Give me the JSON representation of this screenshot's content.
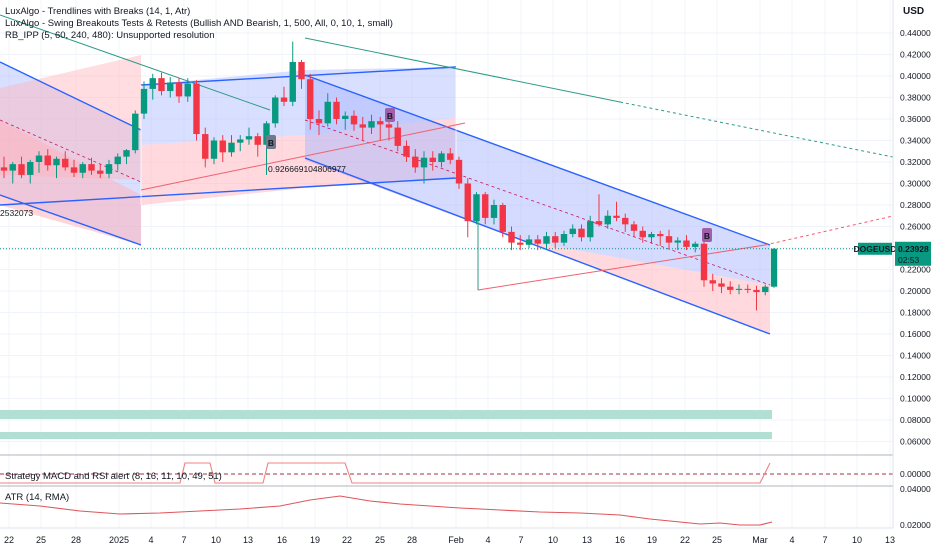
{
  "header": {
    "currency": "USD",
    "indicators": [
      "LuxAlgo - Trendlines with Breaks (14, 1, Atr)",
      "LuxAlgo - Swing Breakouts Tests & Retests (Bullish AND Bearish, 1, 500, All, 0, 10, 1, small)",
      "RB_IPP (5, 60, 240, 480): Unsupported resolution"
    ]
  },
  "price_tag": {
    "symbol": "DOGEUSD",
    "price": "0.23928",
    "countdown": "02:53"
  },
  "annotations": {
    "fib_value": "0.926669104806977",
    "left_value": "2532073",
    "break_label": "B"
  },
  "panes": {
    "strategy_label": "Strategy MACD and RSI alert (8, 16, 11, 10, 49, 51)",
    "atr_label": "ATR (14, RMA)"
  },
  "colors": {
    "up": "#089981",
    "down": "#f23645",
    "channel_blue": "#2962ff",
    "channel_fill_blue": "#aab8ff",
    "channel_fill_red": "#ffb3bb",
    "trend_teal": "#2e9c88",
    "badge": "#a05fa8",
    "zone": "#b2dfd4",
    "atr": "#e0555a"
  },
  "chart_data": {
    "type": "candlestick",
    "symbol": "DOGEUSD",
    "ylim": [
      0.0,
      0.45
    ],
    "y_ticks": [
      "0.44000",
      "0.42000",
      "0.40000",
      "0.38000",
      "0.36000",
      "0.34000",
      "0.32000",
      "0.30000",
      "0.28000",
      "0.26000",
      "0.24000",
      "0.22000",
      "0.20000",
      "0.18000",
      "0.16000",
      "0.14000",
      "0.12000",
      "0.10000",
      "0.08000",
      "0.06000"
    ],
    "x_ticks": [
      "22",
      "25",
      "28",
      "2025",
      "4",
      "7",
      "10",
      "13",
      "16",
      "19",
      "22",
      "25",
      "28",
      "Feb",
      "4",
      "7",
      "10",
      "13",
      "16",
      "19",
      "22",
      "25",
      "Mar",
      "4",
      "7",
      "10",
      "13"
    ],
    "candles": [
      {
        "o": 0.315,
        "h": 0.325,
        "l": 0.305,
        "c": 0.312
      },
      {
        "o": 0.312,
        "h": 0.32,
        "l": 0.3,
        "c": 0.318
      },
      {
        "o": 0.318,
        "h": 0.325,
        "l": 0.305,
        "c": 0.308
      },
      {
        "o": 0.308,
        "h": 0.322,
        "l": 0.3,
        "c": 0.32
      },
      {
        "o": 0.32,
        "h": 0.33,
        "l": 0.31,
        "c": 0.326
      },
      {
        "o": 0.326,
        "h": 0.332,
        "l": 0.312,
        "c": 0.317
      },
      {
        "o": 0.317,
        "h": 0.325,
        "l": 0.305,
        "c": 0.323
      },
      {
        "o": 0.323,
        "h": 0.33,
        "l": 0.312,
        "c": 0.315
      },
      {
        "o": 0.315,
        "h": 0.322,
        "l": 0.306,
        "c": 0.31
      },
      {
        "o": 0.31,
        "h": 0.32,
        "l": 0.305,
        "c": 0.318
      },
      {
        "o": 0.318,
        "h": 0.324,
        "l": 0.308,
        "c": 0.312
      },
      {
        "o": 0.312,
        "h": 0.318,
        "l": 0.305,
        "c": 0.309
      },
      {
        "o": 0.309,
        "h": 0.322,
        "l": 0.305,
        "c": 0.318
      },
      {
        "o": 0.318,
        "h": 0.328,
        "l": 0.312,
        "c": 0.325
      },
      {
        "o": 0.325,
        "h": 0.332,
        "l": 0.318,
        "c": 0.331
      },
      {
        "o": 0.331,
        "h": 0.368,
        "l": 0.328,
        "c": 0.365
      },
      {
        "o": 0.365,
        "h": 0.395,
        "l": 0.36,
        "c": 0.388
      },
      {
        "o": 0.388,
        "h": 0.402,
        "l": 0.378,
        "c": 0.398
      },
      {
        "o": 0.398,
        "h": 0.403,
        "l": 0.382,
        "c": 0.386
      },
      {
        "o": 0.386,
        "h": 0.399,
        "l": 0.38,
        "c": 0.394
      },
      {
        "o": 0.394,
        "h": 0.398,
        "l": 0.375,
        "c": 0.381
      },
      {
        "o": 0.381,
        "h": 0.398,
        "l": 0.376,
        "c": 0.393
      },
      {
        "o": 0.393,
        "h": 0.396,
        "l": 0.34,
        "c": 0.346
      },
      {
        "o": 0.346,
        "h": 0.352,
        "l": 0.315,
        "c": 0.323
      },
      {
        "o": 0.323,
        "h": 0.343,
        "l": 0.318,
        "c": 0.34
      },
      {
        "o": 0.34,
        "h": 0.345,
        "l": 0.32,
        "c": 0.329
      },
      {
        "o": 0.329,
        "h": 0.345,
        "l": 0.325,
        "c": 0.338
      },
      {
        "o": 0.338,
        "h": 0.345,
        "l": 0.33,
        "c": 0.341
      },
      {
        "o": 0.341,
        "h": 0.352,
        "l": 0.336,
        "c": 0.344
      },
      {
        "o": 0.344,
        "h": 0.347,
        "l": 0.325,
        "c": 0.336
      },
      {
        "o": 0.336,
        "h": 0.358,
        "l": 0.308,
        "c": 0.356
      },
      {
        "o": 0.356,
        "h": 0.382,
        "l": 0.352,
        "c": 0.38
      },
      {
        "o": 0.38,
        "h": 0.39,
        "l": 0.372,
        "c": 0.376
      },
      {
        "o": 0.376,
        "h": 0.432,
        "l": 0.372,
        "c": 0.413
      },
      {
        "o": 0.413,
        "h": 0.415,
        "l": 0.388,
        "c": 0.397
      },
      {
        "o": 0.397,
        "h": 0.402,
        "l": 0.35,
        "c": 0.36
      },
      {
        "o": 0.36,
        "h": 0.368,
        "l": 0.345,
        "c": 0.356
      },
      {
        "o": 0.356,
        "h": 0.384,
        "l": 0.353,
        "c": 0.376
      },
      {
        "o": 0.376,
        "h": 0.38,
        "l": 0.355,
        "c": 0.36
      },
      {
        "o": 0.36,
        "h": 0.367,
        "l": 0.35,
        "c": 0.363
      },
      {
        "o": 0.363,
        "h": 0.368,
        "l": 0.349,
        "c": 0.355
      },
      {
        "o": 0.355,
        "h": 0.362,
        "l": 0.34,
        "c": 0.352
      },
      {
        "o": 0.352,
        "h": 0.364,
        "l": 0.346,
        "c": 0.358
      },
      {
        "o": 0.358,
        "h": 0.362,
        "l": 0.34,
        "c": 0.355
      },
      {
        "o": 0.355,
        "h": 0.36,
        "l": 0.34,
        "c": 0.352
      },
      {
        "o": 0.352,
        "h": 0.358,
        "l": 0.33,
        "c": 0.335
      },
      {
        "o": 0.335,
        "h": 0.34,
        "l": 0.32,
        "c": 0.325
      },
      {
        "o": 0.325,
        "h": 0.332,
        "l": 0.31,
        "c": 0.315
      },
      {
        "o": 0.315,
        "h": 0.33,
        "l": 0.3,
        "c": 0.324
      },
      {
        "o": 0.324,
        "h": 0.33,
        "l": 0.312,
        "c": 0.32
      },
      {
        "o": 0.32,
        "h": 0.33,
        "l": 0.315,
        "c": 0.328
      },
      {
        "o": 0.328,
        "h": 0.333,
        "l": 0.318,
        "c": 0.322
      },
      {
        "o": 0.322,
        "h": 0.325,
        "l": 0.295,
        "c": 0.3
      },
      {
        "o": 0.3,
        "h": 0.305,
        "l": 0.25,
        "c": 0.265
      },
      {
        "o": 0.265,
        "h": 0.292,
        "l": 0.262,
        "c": 0.29
      },
      {
        "o": 0.29,
        "h": 0.292,
        "l": 0.262,
        "c": 0.268
      },
      {
        "o": 0.268,
        "h": 0.285,
        "l": 0.262,
        "c": 0.28
      },
      {
        "o": 0.28,
        "h": 0.282,
        "l": 0.25,
        "c": 0.255
      },
      {
        "o": 0.255,
        "h": 0.26,
        "l": 0.238,
        "c": 0.245
      },
      {
        "o": 0.245,
        "h": 0.252,
        "l": 0.238,
        "c": 0.243
      },
      {
        "o": 0.243,
        "h": 0.252,
        "l": 0.24,
        "c": 0.248
      },
      {
        "o": 0.248,
        "h": 0.252,
        "l": 0.238,
        "c": 0.244
      },
      {
        "o": 0.244,
        "h": 0.255,
        "l": 0.238,
        "c": 0.251
      },
      {
        "o": 0.251,
        "h": 0.255,
        "l": 0.24,
        "c": 0.245
      },
      {
        "o": 0.245,
        "h": 0.256,
        "l": 0.242,
        "c": 0.253
      },
      {
        "o": 0.253,
        "h": 0.262,
        "l": 0.25,
        "c": 0.258
      },
      {
        "o": 0.258,
        "h": 0.262,
        "l": 0.246,
        "c": 0.25
      },
      {
        "o": 0.25,
        "h": 0.27,
        "l": 0.246,
        "c": 0.265
      },
      {
        "o": 0.265,
        "h": 0.29,
        "l": 0.26,
        "c": 0.262
      },
      {
        "o": 0.262,
        "h": 0.275,
        "l": 0.258,
        "c": 0.27
      },
      {
        "o": 0.27,
        "h": 0.283,
        "l": 0.265,
        "c": 0.268
      },
      {
        "o": 0.268,
        "h": 0.272,
        "l": 0.255,
        "c": 0.262
      },
      {
        "o": 0.262,
        "h": 0.265,
        "l": 0.25,
        "c": 0.256
      },
      {
        "o": 0.256,
        "h": 0.26,
        "l": 0.245,
        "c": 0.25
      },
      {
        "o": 0.25,
        "h": 0.255,
        "l": 0.244,
        "c": 0.253
      },
      {
        "o": 0.253,
        "h": 0.256,
        "l": 0.242,
        "c": 0.251
      },
      {
        "o": 0.251,
        "h": 0.257,
        "l": 0.24,
        "c": 0.245
      },
      {
        "o": 0.245,
        "h": 0.25,
        "l": 0.238,
        "c": 0.247
      },
      {
        "o": 0.247,
        "h": 0.252,
        "l": 0.238,
        "c": 0.241
      },
      {
        "o": 0.241,
        "h": 0.246,
        "l": 0.236,
        "c": 0.244
      },
      {
        "o": 0.244,
        "h": 0.248,
        "l": 0.204,
        "c": 0.21
      },
      {
        "o": 0.21,
        "h": 0.216,
        "l": 0.2,
        "c": 0.207
      },
      {
        "o": 0.207,
        "h": 0.212,
        "l": 0.198,
        "c": 0.204
      },
      {
        "o": 0.204,
        "h": 0.209,
        "l": 0.197,
        "c": 0.201
      },
      {
        "o": 0.201,
        "h": 0.206,
        "l": 0.197,
        "c": 0.202
      },
      {
        "o": 0.202,
        "h": 0.206,
        "l": 0.198,
        "c": 0.201
      },
      {
        "o": 0.201,
        "h": 0.205,
        "l": 0.182,
        "c": 0.199
      },
      {
        "o": 0.199,
        "h": 0.206,
        "l": 0.196,
        "c": 0.204
      },
      {
        "o": 0.204,
        "h": 0.24,
        "l": 0.203,
        "c": 0.23928
      }
    ],
    "atr_y_ticks": [
      "0.04000",
      "0.02000"
    ],
    "macd_y_ticks": [
      "0.00000"
    ]
  }
}
